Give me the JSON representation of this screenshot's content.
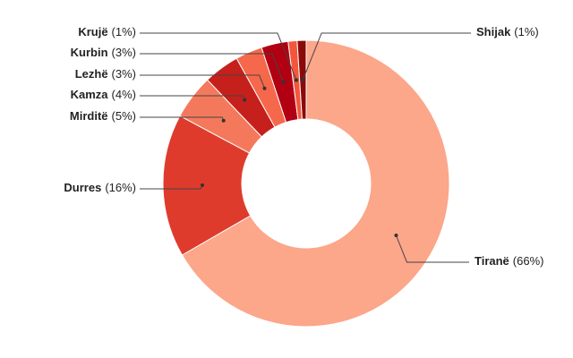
{
  "chart_data": {
    "type": "donut",
    "categories": [
      "Tiranë",
      "Durres",
      "Mirditë",
      "Kamza",
      "Lezhë",
      "Kurbin",
      "Krujë",
      "Shijak"
    ],
    "values": [
      66,
      16,
      5,
      4,
      3,
      3,
      1,
      1
    ],
    "value_labels": [
      "(66%)",
      "(16%)",
      "(5%)",
      "(4%)",
      "(3%)",
      "(3%)",
      "(1%)",
      "(1%)"
    ],
    "colors": [
      "#fca68a",
      "#df3b2d",
      "#f4795c",
      "#c6201c",
      "#f6684b",
      "#b00012",
      "#f4563c",
      "#8a0a0a"
    ]
  }
}
